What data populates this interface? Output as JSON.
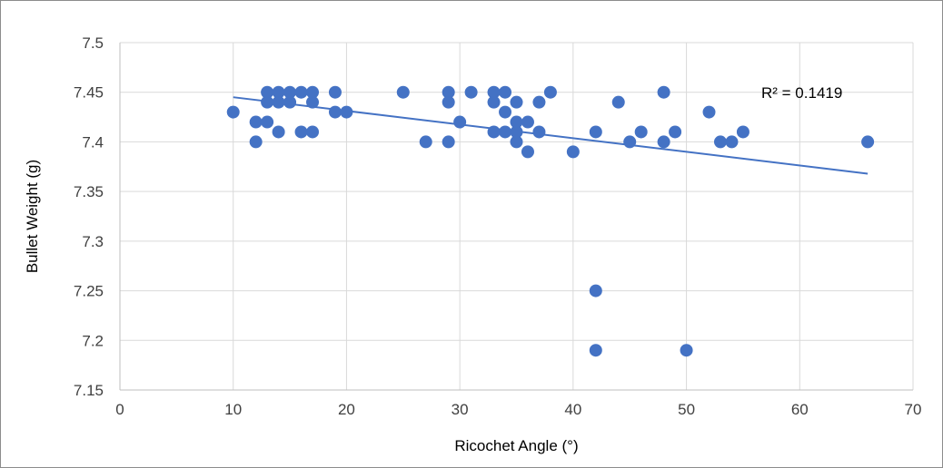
{
  "chart_data": {
    "type": "scatter",
    "xlabel": "Ricochet Angle (°)",
    "ylabel": "Bullet Weight (g)",
    "xlim": [
      0,
      70
    ],
    "ylim": [
      7.15,
      7.5
    ],
    "x_ticks": [
      "0",
      "10",
      "20",
      "30",
      "40",
      "50",
      "60",
      "70"
    ],
    "y_ticks": [
      "7.15",
      "7.2",
      "7.25",
      "7.3",
      "7.35",
      "7.4",
      "7.45",
      "7.5"
    ],
    "grid": true,
    "marker_color": "#4472C4",
    "trendline": {
      "type": "linear",
      "from": [
        10,
        7.445
      ],
      "to": [
        66,
        7.368
      ],
      "color": "#4472C4",
      "label": "R² = 0.1419"
    },
    "points": [
      [
        10,
        7.43
      ],
      [
        12,
        7.42
      ],
      [
        12,
        7.4
      ],
      [
        13,
        7.45
      ],
      [
        13,
        7.44
      ],
      [
        13,
        7.42
      ],
      [
        14,
        7.45
      ],
      [
        14,
        7.44
      ],
      [
        14,
        7.41
      ],
      [
        15,
        7.45
      ],
      [
        15,
        7.44
      ],
      [
        16,
        7.45
      ],
      [
        16,
        7.41
      ],
      [
        17,
        7.45
      ],
      [
        17,
        7.44
      ],
      [
        17,
        7.41
      ],
      [
        19,
        7.45
      ],
      [
        19,
        7.43
      ],
      [
        20,
        7.43
      ],
      [
        25,
        7.45
      ],
      [
        27,
        7.4
      ],
      [
        29,
        7.45
      ],
      [
        29,
        7.44
      ],
      [
        29,
        7.4
      ],
      [
        30,
        7.42
      ],
      [
        31,
        7.45
      ],
      [
        33,
        7.45
      ],
      [
        33,
        7.44
      ],
      [
        33,
        7.41
      ],
      [
        34,
        7.45
      ],
      [
        34,
        7.43
      ],
      [
        34,
        7.41
      ],
      [
        35,
        7.44
      ],
      [
        35,
        7.42
      ],
      [
        35,
        7.41
      ],
      [
        35,
        7.4
      ],
      [
        36,
        7.42
      ],
      [
        36,
        7.39
      ],
      [
        37,
        7.44
      ],
      [
        37,
        7.41
      ],
      [
        38,
        7.45
      ],
      [
        40,
        7.39
      ],
      [
        42,
        7.41
      ],
      [
        42,
        7.25
      ],
      [
        42,
        7.19
      ],
      [
        44,
        7.44
      ],
      [
        45,
        7.4
      ],
      [
        46,
        7.41
      ],
      [
        48,
        7.45
      ],
      [
        48,
        7.4
      ],
      [
        49,
        7.41
      ],
      [
        50,
        7.19
      ],
      [
        52,
        7.43
      ],
      [
        53,
        7.4
      ],
      [
        54,
        7.4
      ],
      [
        55,
        7.41
      ],
      [
        66,
        7.4
      ]
    ]
  }
}
